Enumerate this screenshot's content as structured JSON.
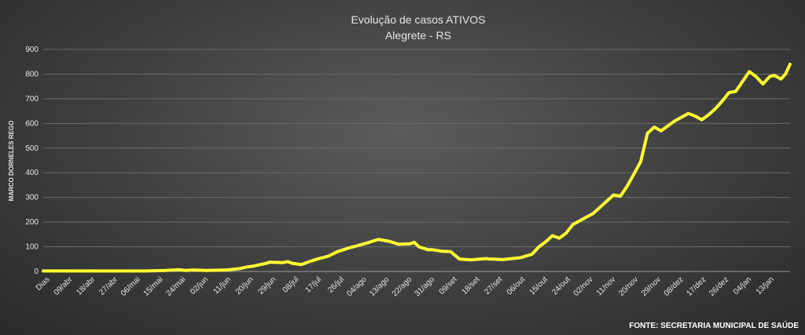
{
  "chart_data": {
    "type": "line",
    "title": "Evolução  de casos ATIVOS",
    "subtitle": "Alegrete  -  RS",
    "ylabel": "MARCO DORNELES REGO",
    "xlabel": "",
    "source": "FONTE: SECRETARIA MUNICIPAL DE SAÚDE",
    "ylim": [
      0,
      900
    ],
    "yticks": [
      0,
      100,
      200,
      300,
      400,
      500,
      600,
      700,
      800,
      900
    ],
    "xticks": [
      "Dias",
      "09/abr",
      "18/abr",
      "27/abr",
      "06/mai",
      "15/mai",
      "24/mai",
      "02/jun",
      "11/jun",
      "20/jun",
      "29/jun",
      "08/jul",
      "17/jul",
      "26/jul",
      "04/ago",
      "13/ago",
      "22/ago",
      "31/ago",
      "09/set",
      "18/set",
      "27/set",
      "06/out",
      "15/out",
      "24/out",
      "02/nov",
      "11/nov",
      "20/nov",
      "29/nov",
      "08/dez",
      "17/dez",
      "26/dez",
      "04/jan",
      "13/jan"
    ],
    "grid": true,
    "line_color": "#ffff33",
    "series": [
      {
        "x": [
          0,
          9,
          18,
          27,
          36,
          45,
          54,
          60,
          63,
          66,
          72,
          81,
          87,
          90,
          93,
          96,
          99,
          100,
          102,
          106,
          108,
          110,
          114,
          117,
          121,
          126,
          130,
          135,
          139,
          144,
          148,
          153,
          157,
          162,
          164,
          166,
          170,
          172,
          176,
          180,
          184,
          189,
          193,
          196,
          197,
          199,
          203,
          207,
          211,
          216,
          219,
          222,
          225,
          228,
          231,
          234,
          237,
          240,
          243,
          246,
          249,
          252,
          255,
          258,
          261,
          264,
          267,
          270,
          273,
          276,
          279,
          282,
          285,
          288,
          291,
          294,
          297,
          300,
          303,
          306,
          309,
          312,
          315,
          318,
          321,
          323,
          326,
          328,
          330
        ],
        "y": [
          2,
          2,
          2,
          2,
          2,
          2,
          4,
          7,
          4,
          6,
          4,
          6,
          12,
          18,
          22,
          28,
          34,
          38,
          37,
          36,
          40,
          33,
          28,
          38,
          50,
          62,
          80,
          95,
          105,
          118,
          130,
          122,
          110,
          112,
          118,
          100,
          88,
          88,
          82,
          80,
          50,
          47,
          50,
          52,
          50,
          50,
          48,
          52,
          56,
          70,
          100,
          120,
          145,
          135,
          155,
          190,
          205,
          220,
          235,
          260,
          285,
          310,
          305,
          345,
          395,
          445,
          560,
          585,
          570,
          590,
          610,
          625,
          640,
          630,
          615,
          635,
          660,
          690,
          725,
          730,
          770,
          810,
          790,
          760,
          790,
          795,
          780,
          800,
          840
        ]
      }
    ]
  }
}
